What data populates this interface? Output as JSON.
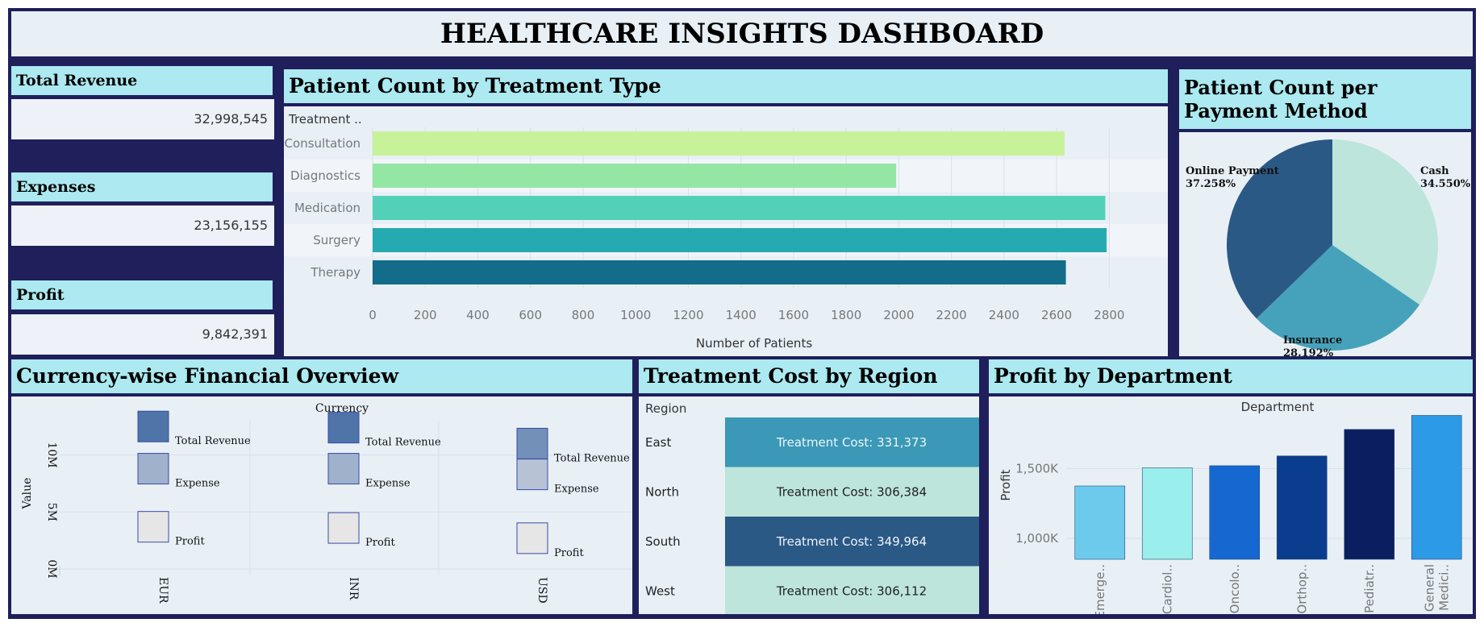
{
  "dashboard": {
    "title": "HEALTHCARE INSIGHTS DASHBOARD"
  },
  "kpis": [
    {
      "label": "Total Revenue",
      "value": "32,998,545"
    },
    {
      "label": "Expenses",
      "value": "23,156,155"
    },
    {
      "label": "Profit",
      "value": "9,842,391"
    }
  ],
  "panels": {
    "treatment": "Patient Count by Treatment Type",
    "payment": "Patient Count per Payment Method",
    "currency": "Currency-wise Financial Overview",
    "region": "Treatment Cost by Region",
    "department": "Profit by Department"
  },
  "chart_data": [
    {
      "id": "treatment",
      "type": "bar",
      "orientation": "horizontal",
      "row_header": "Treatment ..",
      "categories": [
        "Consultation",
        "Diagnostics",
        "Medication",
        "Surgery",
        "Therapy"
      ],
      "values": [
        2630,
        1990,
        2785,
        2790,
        2635
      ],
      "colors": [
        "#c8f299",
        "#94e6a4",
        "#52d1b8",
        "#26aab2",
        "#126c8a"
      ],
      "xlabel": "Number of Patients",
      "xlim": [
        0,
        2900
      ],
      "xticks": [
        0,
        200,
        400,
        600,
        800,
        1000,
        1200,
        1400,
        1600,
        1800,
        2000,
        2200,
        2400,
        2600,
        2800
      ],
      "grid": true
    },
    {
      "id": "payment",
      "type": "pie",
      "slices": [
        {
          "label": "Cash",
          "pct_label": "34.550%",
          "value": 34.55,
          "color": "#bde5db"
        },
        {
          "label": "Insurance",
          "pct_label": "28.192%",
          "value": 28.192,
          "color": "#46a2ba"
        },
        {
          "label": "Online Payment",
          "pct_label": "37.258%",
          "value": 37.258,
          "color": "#2b5986"
        }
      ]
    },
    {
      "id": "currency",
      "type": "scatter",
      "column_header": "Currency",
      "ylabel": "Value",
      "yticks": [
        "10M",
        "5M",
        "0M"
      ],
      "ylim": [
        0,
        14
      ],
      "categories": [
        "EUR",
        "INR",
        "USD"
      ],
      "measures": [
        {
          "name": "Total Revenue",
          "values": [
            12.5,
            12.4,
            11.0
          ],
          "colors": [
            "#4e74a8",
            "#4e74a8",
            "#7390b8"
          ]
        },
        {
          "name": "Expense",
          "values": [
            8.8,
            8.8,
            8.3
          ],
          "colors": [
            "#9fb1cb",
            "#9fb1cb",
            "#b7c2d4"
          ]
        },
        {
          "name": "Profit",
          "values": [
            3.7,
            3.6,
            2.7
          ],
          "colors": [
            "#e6e6e6",
            "#e6e6e6",
            "#e6e6e6"
          ]
        }
      ]
    },
    {
      "id": "region",
      "type": "table",
      "row_header": "Region",
      "rows": [
        {
          "region": "East",
          "text": "Treatment Cost: 331,373",
          "value": 331373,
          "color": "#3b98b6",
          "textColor": "#eaf6fa"
        },
        {
          "region": "North",
          "text": "Treatment Cost: 306,384",
          "value": 306384,
          "color": "#bde5db",
          "textColor": "#222222"
        },
        {
          "region": "South",
          "text": "Treatment Cost: 349,964",
          "value": 349964,
          "color": "#2b5986",
          "textColor": "#eef3f8"
        },
        {
          "region": "West",
          "text": "Treatment Cost: 306,112",
          "value": 306112,
          "color": "#bde5db",
          "textColor": "#222222"
        }
      ]
    },
    {
      "id": "department",
      "type": "bar",
      "column_header": "Department",
      "ylabel": "Profit",
      "categories": [
        "Emerge..",
        "Cardiol..",
        "Oncolo..",
        "Orthop..",
        "Pediatr..",
        "General Medici.."
      ],
      "values": [
        1375,
        1505,
        1520,
        1590,
        1780,
        1880
      ],
      "colors": [
        "#6ccbed",
        "#9aeeec",
        "#1468d0",
        "#0a3d8d",
        "#0b1f60",
        "#2d9ae8"
      ],
      "ylim": [
        850,
        1900
      ],
      "yticks": [
        1000,
        1500
      ],
      "ytick_labels": [
        "1,000K",
        "1,500K"
      ]
    }
  ]
}
